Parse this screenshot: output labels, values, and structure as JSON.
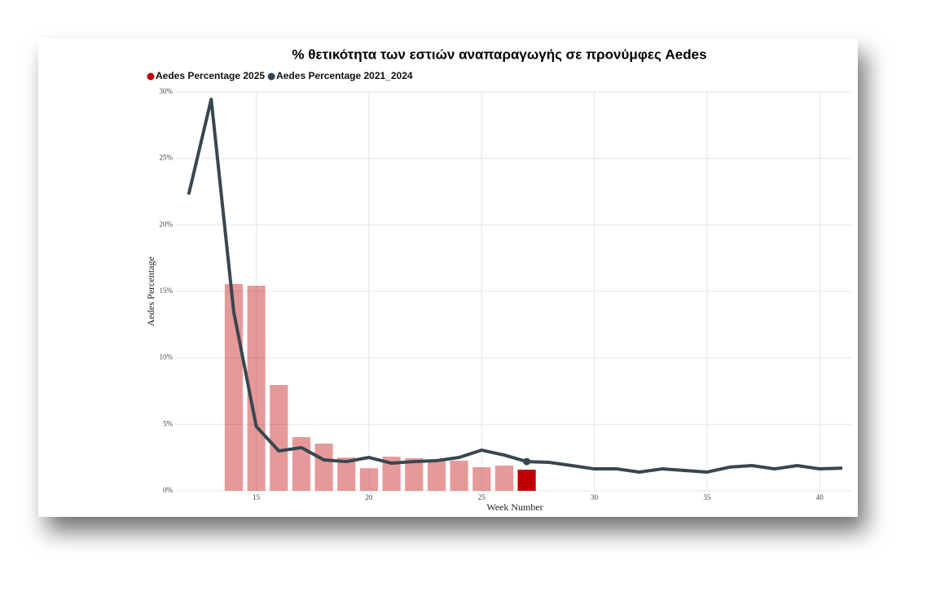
{
  "chart_data": {
    "type": "bar-line",
    "title": "% θετικότητα των εστιών αναπαραγωγής σε προνύμφες Aedes",
    "x_label": "Week Number",
    "y_label": "Aedes Percentage",
    "xlim": [
      11.4,
      41.4
    ],
    "xticks": [
      15,
      20,
      25,
      30,
      35,
      40
    ],
    "ylim": [
      0,
      30
    ],
    "yticks": [
      {
        "value": 0,
        "label": "0%"
      },
      {
        "value": 5,
        "label": "5%"
      },
      {
        "value": 10,
        "label": "10%"
      },
      {
        "value": 15,
        "label": "15%"
      },
      {
        "value": 20,
        "label": "20%"
      },
      {
        "value": 25,
        "label": "25%"
      },
      {
        "value": 30,
        "label": "30%"
      }
    ],
    "grid": true,
    "highlight_week": 27,
    "series": [
      {
        "name": "Aedes Percentage 2025",
        "type": "bar",
        "color": "#c00000",
        "x": [
          14,
          15,
          16,
          17,
          18,
          19,
          20,
          21,
          22,
          23,
          24,
          25,
          26,
          27
        ],
        "values": [
          15.55,
          15.43,
          7.96,
          4.04,
          3.55,
          2.5,
          1.7,
          2.57,
          2.45,
          2.33,
          2.27,
          1.78,
          1.9,
          1.59
        ]
      },
      {
        "name": "Aedes Percentage 2021_2024",
        "type": "line",
        "color": "#37474f",
        "x": [
          12,
          13,
          14,
          15,
          16,
          17,
          18,
          19,
          20,
          21,
          22,
          23,
          24,
          25,
          26,
          27,
          28,
          29,
          30,
          31,
          32,
          33,
          34,
          35,
          36,
          37,
          38,
          39,
          40,
          41
        ],
        "values": [
          22.29,
          29.45,
          13.47,
          4.84,
          3.0,
          3.25,
          2.33,
          2.2,
          2.51,
          2.08,
          2.2,
          2.27,
          2.51,
          3.06,
          2.69,
          2.2,
          2.14,
          1.9,
          1.65,
          1.65,
          1.41,
          1.65,
          1.53,
          1.41,
          1.78,
          1.9,
          1.65,
          1.9,
          1.65,
          1.71
        ]
      }
    ]
  }
}
